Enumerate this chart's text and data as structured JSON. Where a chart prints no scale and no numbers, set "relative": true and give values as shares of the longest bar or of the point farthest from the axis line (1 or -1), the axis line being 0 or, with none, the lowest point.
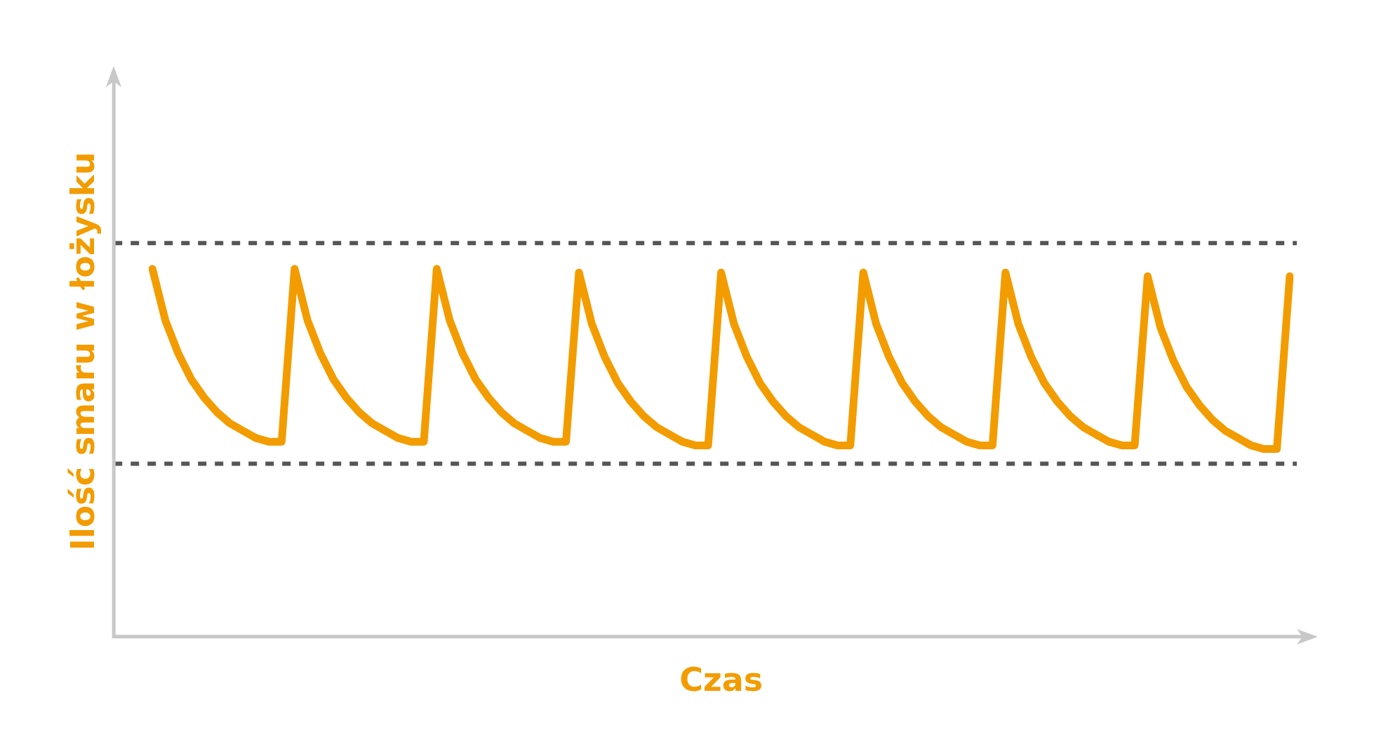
{
  "chart_data": {
    "type": "line",
    "relative": true,
    "xlabel": "Czas",
    "ylabel": "Ilość smaru w łożysku",
    "categories": [
      null,
      null,
      null,
      null,
      null,
      null,
      null,
      null,
      null,
      null,
      null,
      null,
      null,
      null,
      null,
      null,
      null,
      null,
      null,
      null,
      null,
      null,
      null,
      null,
      null,
      null,
      null,
      null,
      null,
      null,
      null,
      null,
      null,
      null,
      null,
      null,
      null,
      null,
      null,
      null,
      null,
      null,
      null,
      null,
      null,
      null,
      null,
      null,
      null,
      null,
      null,
      null,
      null,
      null,
      null,
      null,
      null,
      null,
      null,
      null,
      null,
      null,
      null,
      null,
      null,
      null,
      null,
      null,
      null,
      null,
      null,
      null,
      null,
      null,
      null,
      null,
      null,
      null,
      null,
      null,
      null,
      null,
      null,
      null,
      null,
      null,
      null,
      null,
      null
    ],
    "series": [
      {
        "color": "#f29c00",
        "values": [
          1,
          0.86,
          0.77,
          0.7,
          0.65,
          0.61,
          0.58,
          0.56,
          0.54,
          0.53,
          0.53,
          1,
          0.86,
          0.77,
          0.7,
          0.65,
          0.61,
          0.58,
          0.56,
          0.54,
          0.53,
          0.53,
          1,
          0.86,
          0.77,
          0.7,
          0.65,
          0.61,
          0.58,
          0.56,
          0.54,
          0.53,
          0.53,
          0.99,
          0.85,
          0.76,
          0.69,
          0.64,
          0.6,
          0.57,
          0.55,
          0.53,
          0.52,
          0.52,
          0.99,
          0.85,
          0.76,
          0.69,
          0.64,
          0.6,
          0.57,
          0.55,
          0.53,
          0.52,
          0.52,
          0.99,
          0.85,
          0.76,
          0.69,
          0.64,
          0.6,
          0.57,
          0.55,
          0.53,
          0.52,
          0.52,
          0.99,
          0.85,
          0.76,
          0.69,
          0.64,
          0.6,
          0.57,
          0.55,
          0.53,
          0.52,
          0.52,
          0.98,
          0.84,
          0.75,
          0.68,
          0.63,
          0.59,
          0.56,
          0.54,
          0.52,
          0.51,
          0.51,
          0.98
        ]
      }
    ],
    "ref_lines": [
      {
        "axis": "y",
        "value": 1.07,
        "color": "#555555",
        "line_style": "dashed"
      },
      {
        "axis": "y",
        "value": 0.47,
        "color": "#555555",
        "line_style": "dashed"
      }
    ],
    "legend": false
  }
}
